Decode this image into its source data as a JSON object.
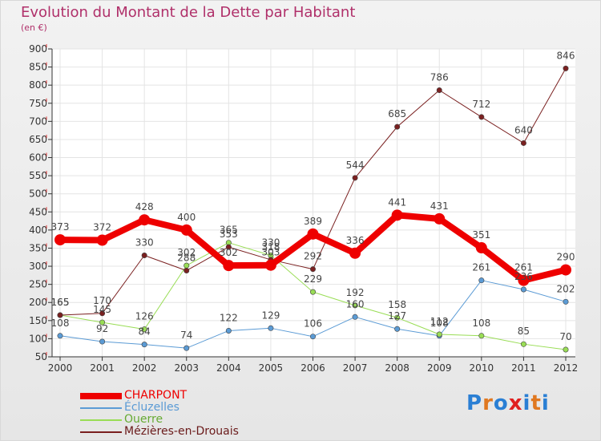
{
  "title": "Evolution du Montant de la Dette par Habitant",
  "unit_label": "(en €)",
  "logo": {
    "text": "Proxiti",
    "letters": [
      {
        "ch": "P",
        "color": "#2a7fd4"
      },
      {
        "ch": "r",
        "color": "#e07820"
      },
      {
        "ch": "o",
        "color": "#2a7fd4"
      },
      {
        "ch": "x",
        "color": "#e02020"
      },
      {
        "ch": "i",
        "color": "#2a7fd4"
      },
      {
        "ch": "t",
        "color": "#e07820"
      },
      {
        "ch": "i",
        "color": "#2a7fd4"
      }
    ]
  },
  "chart_data": {
    "type": "line",
    "title": "Evolution du Montant de la Dette par Habitant",
    "xlabel": "",
    "ylabel": "(en €)",
    "ylim": [
      50,
      900
    ],
    "yticks": [
      50,
      100,
      150,
      200,
      250,
      300,
      350,
      400,
      450,
      500,
      550,
      600,
      650,
      700,
      750,
      800,
      850,
      900
    ],
    "grid": true,
    "legend_position": "bottom-left",
    "x": [
      "2000",
      "2001",
      "2002",
      "2003",
      "2004",
      "2005",
      "2006",
      "2007",
      "2008",
      "2009",
      "2010",
      "2011",
      "2012"
    ],
    "series": [
      {
        "name": "CHARPONT",
        "color": "#ee0000",
        "width": 8,
        "values": [
          373,
          372,
          428,
          400,
          302,
          303,
          389,
          336,
          441,
          431,
          351,
          261,
          290
        ]
      },
      {
        "name": "Écluzelles",
        "color": "#5b9bd5",
        "width": 1,
        "values": [
          108,
          92,
          84,
          74,
          122,
          129,
          106,
          160,
          127,
          108,
          261,
          236,
          202
        ]
      },
      {
        "name": "Ouerre",
        "color": "#99dd55",
        "width": 1,
        "values": [
          165,
          145,
          126,
          302,
          365,
          330,
          229,
          192,
          158,
          112,
          108,
          85,
          70
        ]
      },
      {
        "name": "Mézières-en-Drouais",
        "color": "#7a2020",
        "width": 1,
        "values": [
          165,
          170,
          330,
          288,
          353,
          318,
          292,
          544,
          685,
          786,
          712,
          640,
          846
        ]
      }
    ]
  }
}
